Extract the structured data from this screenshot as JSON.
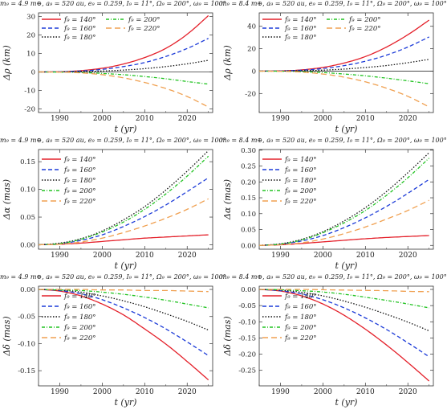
{
  "styles": {
    "f140": {
      "color": "#e4202a",
      "dash": "none",
      "label": "f₉ = 140°"
    },
    "f160": {
      "color": "#1c3bd8",
      "dash": "5,3",
      "label": "f₉ = 160°"
    },
    "f180": {
      "color": "#111111",
      "dash": "1.5,2",
      "label": "f₉ = 180°"
    },
    "f200": {
      "color": "#22c322",
      "dash": "4,2,1,2",
      "label": "f₉ = 200°"
    },
    "f220": {
      "color": "#f0a050",
      "dash": "7,4",
      "label": "f₉ = 220°"
    }
  },
  "titles": {
    "left": "m₉ = 4.9 m⊕, a₉ = 520 au, e₉ = 0.259, I₉ = 11°, Ω₉ = 200°, ω₉ = 100°",
    "right": "m₉ = 8.4 m⊕, a₉ = 520 au, e₉ = 0.259, I₉ = 11°, Ω₉ = 200°, ω₉ = 100°"
  },
  "chart_data": [
    {
      "type": "line",
      "title": "m₉ = 4.9 m⊕, a₉ = 520 au, e₉ = 0.259, I₉ = 11°, Ω₉ = 200°, ω₉ = 100°",
      "xlabel": "t (yr)",
      "ylabel": "Δρ (km)",
      "xlim": [
        1985,
        2026
      ],
      "ylim": [
        -22,
        32
      ],
      "xticks": [
        1990,
        2000,
        2010,
        2020
      ],
      "yticks": [
        -20,
        -10,
        0,
        10,
        20,
        30
      ],
      "legend": "top-left, two columns",
      "x": [
        1985,
        1990,
        1995,
        2000,
        2005,
        2010,
        2015,
        2020,
        2025
      ],
      "series": [
        {
          "name": "f₉ = 140°",
          "values": [
            0,
            0.1,
            0.7,
            2.0,
            4.3,
            7.8,
            12.8,
            20.4,
            30.5
          ]
        },
        {
          "name": "f₉ = 160°",
          "values": [
            0,
            0.1,
            0.5,
            1.4,
            2.9,
            5.1,
            8.4,
            12.7,
            18.2
          ]
        },
        {
          "name": "f₉ = 180°",
          "values": [
            0,
            0.0,
            0.2,
            0.5,
            1.0,
            1.8,
            2.9,
            4.4,
            6.3
          ]
        },
        {
          "name": "f₉ = 200°",
          "values": [
            0,
            -0.1,
            -0.3,
            -0.8,
            -1.5,
            -2.5,
            -3.7,
            -5.2,
            -6.6
          ]
        },
        {
          "name": "f₉ = 220°",
          "values": [
            0,
            -0.1,
            -0.5,
            -1.5,
            -3.2,
            -5.7,
            -9.0,
            -13.3,
            -19.0
          ]
        }
      ]
    },
    {
      "type": "line",
      "title": "m₉ = 8.4 m⊕, a₉ = 520 au, e₉ = 0.259, I₉ = 11°, Ω₉ = 200°, ω₉ = 100°",
      "xlabel": "t (yr)",
      "ylabel": "Δρ (km)",
      "xlim": [
        1985,
        2026
      ],
      "ylim": [
        -37,
        52
      ],
      "xticks": [
        1990,
        2000,
        2010,
        2020
      ],
      "yticks": [
        -20,
        0,
        20,
        40
      ],
      "legend": "top-left, two columns",
      "x": [
        1985,
        1990,
        1995,
        2000,
        2005,
        2010,
        2015,
        2020,
        2025
      ],
      "series": [
        {
          "name": "f₉ = 140°",
          "values": [
            0,
            0.2,
            1.1,
            3.3,
            7.2,
            13.0,
            21.5,
            32.5,
            45.5
          ]
        },
        {
          "name": "f₉ = 160°",
          "values": [
            0,
            0.1,
            0.8,
            2.3,
            4.9,
            8.8,
            14.3,
            21.5,
            30.5
          ]
        },
        {
          "name": "f₉ = 180°",
          "values": [
            0,
            0.0,
            0.3,
            0.9,
            1.8,
            3.2,
            5.0,
            7.5,
            10.5
          ]
        },
        {
          "name": "f₉ = 200°",
          "values": [
            0,
            -0.1,
            -0.5,
            -1.3,
            -2.6,
            -4.2,
            -6.3,
            -8.7,
            -11.2
          ]
        },
        {
          "name": "f₉ = 220°",
          "values": [
            0,
            -0.2,
            -0.9,
            -2.6,
            -5.4,
            -9.6,
            -15.3,
            -22.5,
            -32.0
          ]
        }
      ]
    },
    {
      "type": "line",
      "title": "m₉ = 4.9 m⊕, a₉ = 520 au, e₉ = 0.259, I₉ = 11°, Ω₉ = 200°, ω₉ = 100°",
      "xlabel": "t (yr)",
      "ylabel": "Δα (mas)",
      "xlim": [
        1985,
        2026
      ],
      "ylim": [
        -0.008,
        0.172
      ],
      "xticks": [
        1990,
        2000,
        2010,
        2020
      ],
      "yticks": [
        0.0,
        0.05,
        0.1,
        0.15
      ],
      "legend": "left, vertical",
      "x": [
        1985,
        1990,
        1995,
        2000,
        2005,
        2010,
        2015,
        2020,
        2025
      ],
      "series": [
        {
          "name": "f₉ = 140°",
          "values": [
            0,
            0.001,
            0.003,
            0.006,
            0.009,
            0.012,
            0.014,
            0.016,
            0.018
          ]
        },
        {
          "name": "f₉ = 160°",
          "values": [
            0,
            0.002,
            0.008,
            0.018,
            0.033,
            0.051,
            0.072,
            0.096,
            0.121
          ]
        },
        {
          "name": "f₉ = 180°",
          "values": [
            0,
            0.003,
            0.011,
            0.025,
            0.045,
            0.069,
            0.099,
            0.133,
            0.17
          ]
        },
        {
          "name": "f₉ = 200°",
          "values": [
            0,
            0.002,
            0.01,
            0.023,
            0.041,
            0.064,
            0.092,
            0.124,
            0.16
          ]
        },
        {
          "name": "f₉ = 220°",
          "values": [
            0,
            0.001,
            0.005,
            0.012,
            0.022,
            0.034,
            0.048,
            0.064,
            0.083
          ]
        }
      ]
    },
    {
      "type": "line",
      "title": "m₉ = 8.4 m⊕, a₉ = 520 au, e₉ = 0.259, I₉ = 11°, Ω₉ = 200°, ω₉ = 100°",
      "xlabel": "t (yr)",
      "ylabel": "Δα (mas)",
      "xlim": [
        1985,
        2026
      ],
      "ylim": [
        -0.012,
        0.302
      ],
      "xticks": [
        1990,
        2000,
        2010,
        2020
      ],
      "yticks": [
        0.0,
        0.05,
        0.1,
        0.15,
        0.2,
        0.25,
        0.3
      ],
      "legend": "left, vertical",
      "x": [
        1985,
        1990,
        1995,
        2000,
        2005,
        2010,
        2015,
        2020,
        2025
      ],
      "series": [
        {
          "name": "f₉ = 140°",
          "values": [
            0,
            0.002,
            0.006,
            0.011,
            0.016,
            0.021,
            0.025,
            0.028,
            0.031
          ]
        },
        {
          "name": "f₉ = 160°",
          "values": [
            0,
            0.004,
            0.014,
            0.031,
            0.056,
            0.087,
            0.123,
            0.164,
            0.208
          ]
        },
        {
          "name": "f₉ = 180°",
          "values": [
            0,
            0.005,
            0.019,
            0.043,
            0.077,
            0.119,
            0.17,
            0.229,
            0.292
          ]
        },
        {
          "name": "f₉ = 200°",
          "values": [
            0,
            0.004,
            0.017,
            0.04,
            0.071,
            0.11,
            0.158,
            0.213,
            0.275
          ]
        },
        {
          "name": "f₉ = 220°",
          "values": [
            0,
            0.002,
            0.008,
            0.02,
            0.037,
            0.058,
            0.083,
            0.11,
            0.142
          ]
        }
      ]
    },
    {
      "type": "line",
      "title": "m₉ = 4.9 m⊕, a₉ = 520 au, e₉ = 0.259, I₉ = 11°, Ω₉ = 200°, ω₉ = 100°",
      "xlabel": "t (yr)",
      "ylabel": "Δδ (mas)",
      "xlim": [
        1985,
        2026
      ],
      "ylim": [
        -0.178,
        0.006
      ],
      "xticks": [
        1990,
        2000,
        2010,
        2020
      ],
      "yticks": [
        0.0,
        -0.05,
        -0.1,
        -0.15
      ],
      "legend": "left, vertical",
      "x": [
        1985,
        1990,
        1995,
        2000,
        2005,
        2010,
        2015,
        2020,
        2025
      ],
      "series": [
        {
          "name": "f₉ = 140°",
          "values": [
            0,
            -0.003,
            -0.012,
            -0.027,
            -0.047,
            -0.073,
            -0.101,
            -0.133,
            -0.167
          ]
        },
        {
          "name": "f₉ = 160°",
          "values": [
            0,
            -0.002,
            -0.008,
            -0.019,
            -0.034,
            -0.052,
            -0.073,
            -0.097,
            -0.122
          ]
        },
        {
          "name": "f₉ = 180°",
          "values": [
            0,
            -0.001,
            -0.005,
            -0.012,
            -0.021,
            -0.032,
            -0.045,
            -0.059,
            -0.075
          ]
        },
        {
          "name": "f₉ = 200°",
          "values": [
            0,
            -0.001,
            -0.002,
            -0.005,
            -0.009,
            -0.014,
            -0.02,
            -0.027,
            -0.034
          ]
        },
        {
          "name": "f₉ = 220°",
          "values": [
            0,
            0.0,
            0.0,
            -0.001,
            -0.001,
            -0.002,
            -0.002,
            -0.003,
            -0.004
          ]
        }
      ]
    },
    {
      "type": "line",
      "title": "m₉ = 8.4 m⊕, a₉ = 520 au, e₉ = 0.259, I₉ = 11°, Ω₉ = 200°, ω₉ = 100°",
      "xlabel": "t (yr)",
      "ylabel": "Δδ (mas)",
      "xlim": [
        1985,
        2026
      ],
      "ylim": [
        -0.298,
        0.01
      ],
      "xticks": [
        1990,
        2000,
        2010,
        2020
      ],
      "yticks": [
        0.0,
        -0.05,
        -0.1,
        -0.15,
        -0.2,
        -0.25
      ],
      "legend": "left, vertical",
      "x": [
        1985,
        1990,
        1995,
        2000,
        2005,
        2010,
        2015,
        2020,
        2025
      ],
      "series": [
        {
          "name": "f₉ = 140°",
          "values": [
            0,
            -0.005,
            -0.02,
            -0.045,
            -0.08,
            -0.123,
            -0.172,
            -0.226,
            -0.283
          ]
        },
        {
          "name": "f₉ = 160°",
          "values": [
            0,
            -0.004,
            -0.014,
            -0.032,
            -0.057,
            -0.088,
            -0.124,
            -0.165,
            -0.208
          ]
        },
        {
          "name": "f₉ = 180°",
          "values": [
            0,
            -0.002,
            -0.009,
            -0.02,
            -0.036,
            -0.055,
            -0.077,
            -0.101,
            -0.128
          ]
        },
        {
          "name": "f₉ = 200°",
          "values": [
            0,
            -0.001,
            -0.004,
            -0.008,
            -0.015,
            -0.024,
            -0.034,
            -0.045,
            -0.057
          ]
        },
        {
          "name": "f₉ = 220°",
          "values": [
            0,
            0.0,
            0.0,
            -0.001,
            -0.002,
            -0.003,
            -0.004,
            -0.006,
            -0.007
          ]
        }
      ]
    }
  ]
}
